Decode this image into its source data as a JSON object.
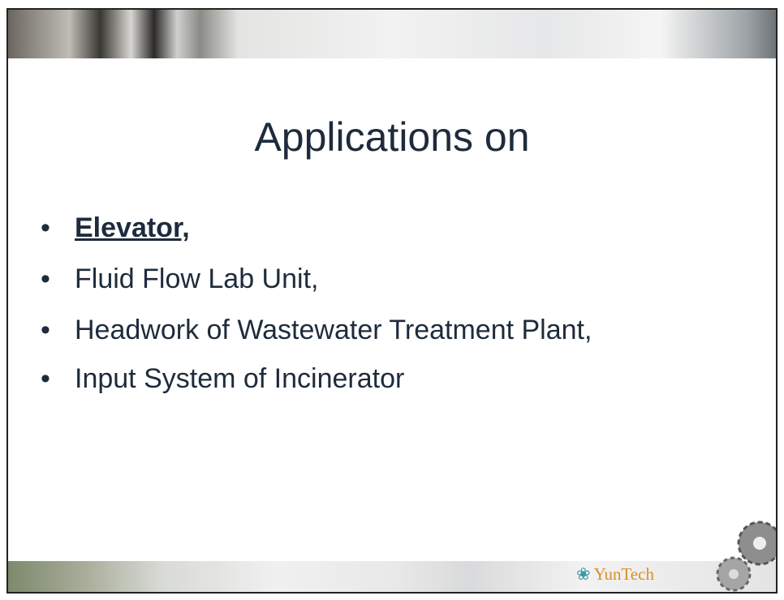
{
  "slide": {
    "title": "Applications on",
    "bullets": [
      "Elevator,",
      "Fluid Flow Lab Unit,",
      "Headwork of Wastewater Treatment Plant,",
      "Input System of Incinerator"
    ],
    "logo": "YunTech"
  }
}
